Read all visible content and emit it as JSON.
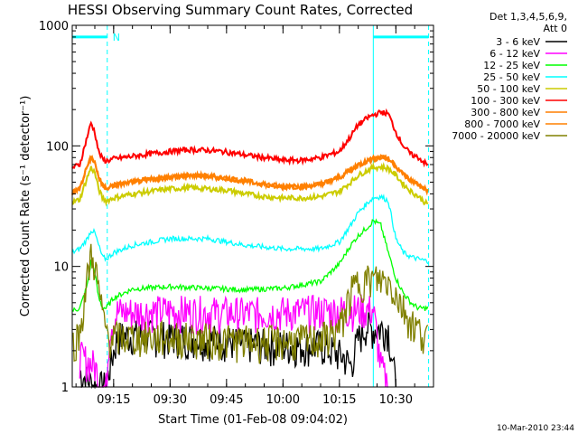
{
  "chart_data": {
    "type": "line",
    "title": "HESSI Observing Summary Count Rates, Corrected",
    "xlabel": "Start Time (01-Feb-08 09:04:02)",
    "ylabel": "Corrected Count Rate (s⁻¹ detector⁻¹)",
    "x_start": "09:04:02",
    "x_end": "10:40",
    "xlim_min": [
      4,
      100
    ],
    "ylim": [
      1,
      1000
    ],
    "yscale": "log",
    "x_ticks": [
      {
        "label": "09:15",
        "min": 15
      },
      {
        "label": "09:30",
        "min": 30
      },
      {
        "label": "09:45",
        "min": 45
      },
      {
        "label": "10:00",
        "min": 60
      },
      {
        "label": "10:15",
        "min": 75
      },
      {
        "label": "10:30",
        "min": 90
      }
    ],
    "y_ticks": [
      {
        "label": "1",
        "value": 1
      },
      {
        "label": "10",
        "value": 10
      },
      {
        "label": "100",
        "value": 100
      },
      {
        "label": "1000",
        "value": 1000
      }
    ],
    "legend_header": [
      "Det 1,3,4,5,6,9,",
      "Att 0"
    ],
    "legend_position": "right",
    "markers": {
      "night_intervals_min": [
        [
          4,
          13.3
        ],
        [
          84,
          98.7
        ]
      ],
      "night_level": 800,
      "saa_label": "N",
      "vertical_lines_min": [
        4,
        13.3,
        84,
        98.7
      ]
    },
    "series": [
      {
        "name": "3 - 6 keV",
        "color": "#000000",
        "x": [
          6,
          10,
          13,
          14,
          16,
          20,
          30,
          40,
          50,
          60,
          70,
          76,
          78,
          80,
          82,
          84,
          86,
          88,
          90
        ],
        "y": [
          1.3,
          1.0,
          1.0,
          1.5,
          2.6,
          2.7,
          2.6,
          2.5,
          2.3,
          2.2,
          2.2,
          1.8,
          1.5,
          2.5,
          3.2,
          3.0,
          3.1,
          3.0,
          1.0
        ]
      },
      {
        "name": "6 - 12 keV",
        "color": "#ff00ff",
        "x": [
          6,
          10,
          11,
          12,
          13,
          14,
          16,
          20,
          30,
          40,
          50,
          60,
          70,
          80,
          84,
          86,
          88
        ],
        "y": [
          1.8,
          1.5,
          1.2,
          1.0,
          1.0,
          3.2,
          4.2,
          4.2,
          4.3,
          4.2,
          4.1,
          4.2,
          4.3,
          4.4,
          4.4,
          1.5,
          1.0
        ]
      },
      {
        "name": "12 - 25 keV",
        "color": "#00ff00",
        "x": [
          4,
          6,
          8,
          9,
          10,
          11,
          12,
          13,
          15,
          20,
          30,
          40,
          50,
          60,
          70,
          75,
          78,
          80,
          83,
          84,
          86,
          88,
          90,
          92,
          94,
          96,
          98.7
        ],
        "y": [
          4.3,
          4.5,
          7.0,
          11.0,
          9.0,
          5.5,
          4.6,
          4.5,
          5.5,
          6.5,
          6.8,
          6.6,
          6.4,
          6.6,
          7.5,
          10.5,
          15,
          18,
          22,
          24,
          22,
          13,
          8,
          6,
          5,
          4.5,
          4.5
        ]
      },
      {
        "name": "25 - 50 keV",
        "color": "#00ffff",
        "x": [
          4,
          6,
          8,
          9,
          10,
          11,
          12,
          13,
          15,
          20,
          25,
          30,
          35,
          40,
          45,
          50,
          55,
          60,
          65,
          70,
          75,
          78,
          80,
          83,
          84,
          86,
          88,
          90,
          92,
          94,
          96,
          98.7
        ],
        "y": [
          13,
          14,
          17,
          20,
          19,
          15,
          12,
          11.5,
          13,
          15,
          16,
          17,
          17,
          17,
          16,
          15,
          14.5,
          14,
          14,
          14,
          16,
          22,
          28,
          35,
          37,
          38,
          35,
          17,
          13,
          12,
          11.5,
          11
        ]
      },
      {
        "name": "50 - 100 keV",
        "color": "#cccc00",
        "x": [
          4,
          6,
          8,
          9,
          10,
          11,
          12,
          13,
          15,
          20,
          25,
          30,
          35,
          40,
          45,
          50,
          55,
          60,
          65,
          70,
          75,
          78,
          80,
          83,
          84,
          86,
          88,
          90,
          92,
          94,
          96,
          98.7
        ],
        "y": [
          34,
          36,
          55,
          66,
          60,
          44,
          37,
          35,
          37,
          40,
          42,
          44,
          45,
          44,
          43,
          40,
          38,
          37,
          37,
          38,
          42,
          50,
          57,
          64,
          66,
          67,
          65,
          57,
          48,
          42,
          38,
          32
        ]
      },
      {
        "name": "100 - 300 keV",
        "color": "#ff0000",
        "x": [
          4,
          6,
          8,
          9,
          10,
          11,
          12,
          13,
          15,
          20,
          25,
          30,
          35,
          40,
          45,
          50,
          55,
          60,
          65,
          70,
          75,
          78,
          80,
          83,
          84,
          86,
          88,
          90,
          92,
          94,
          96,
          98.7
        ],
        "y": [
          66,
          70,
          120,
          155,
          130,
          90,
          78,
          75,
          78,
          82,
          86,
          90,
          93,
          92,
          89,
          84,
          80,
          76,
          76,
          80,
          90,
          120,
          150,
          175,
          180,
          190,
          185,
          130,
          100,
          85,
          80,
          68
        ]
      },
      {
        "name": "300 - 800 keV",
        "color": "#ff7f00",
        "x": [
          4,
          6,
          8,
          9,
          10,
          11,
          12,
          13,
          15,
          20,
          25,
          30,
          35,
          40,
          45,
          50,
          55,
          60,
          65,
          70,
          75,
          78,
          80,
          83,
          84,
          86,
          88,
          90,
          92,
          94,
          96,
          98.7
        ],
        "y": [
          41,
          44,
          68,
          80,
          73,
          55,
          47,
          45,
          47,
          50,
          53,
          55,
          57,
          56,
          54,
          51,
          48,
          46,
          46,
          48,
          55,
          63,
          70,
          76,
          78,
          80,
          78,
          68,
          58,
          52,
          48,
          42
        ]
      },
      {
        "name": "800 - 7000 keV",
        "color": "#ff8000",
        "x": [
          4,
          6,
          8,
          9,
          10,
          11,
          12,
          13,
          15,
          20,
          25,
          30,
          35,
          40,
          45,
          50,
          55,
          60,
          65,
          70,
          75,
          78,
          80,
          83,
          84,
          86,
          88,
          90,
          92,
          94,
          96,
          98.7
        ],
        "y": [
          41,
          44,
          68,
          80,
          73,
          55,
          47,
          45,
          47,
          50,
          53,
          55,
          57,
          56,
          54,
          51,
          48,
          46,
          46,
          48,
          55,
          63,
          70,
          76,
          78,
          80,
          78,
          68,
          58,
          52,
          48,
          42
        ]
      },
      {
        "name": "7000 - 20000 keV",
        "color": "#808000",
        "x": [
          4,
          6,
          8,
          9,
          10,
          11,
          12,
          13,
          14,
          16,
          20,
          30,
          40,
          50,
          60,
          70,
          75,
          78,
          80,
          82,
          84,
          86,
          88,
          90,
          92,
          94,
          96,
          98.7
        ],
        "y": [
          2.3,
          2.8,
          8.0,
          12.5,
          10.5,
          6.5,
          4.0,
          3.0,
          2.6,
          2.6,
          2.6,
          2.6,
          2.5,
          2.4,
          2.4,
          2.5,
          3.0,
          6.0,
          7.5,
          7.8,
          7.8,
          7.8,
          7.5,
          6.0,
          4.5,
          3.5,
          3.0,
          2.6
        ]
      }
    ]
  },
  "footer_timestamp": "10-Mar-2010 23:44"
}
